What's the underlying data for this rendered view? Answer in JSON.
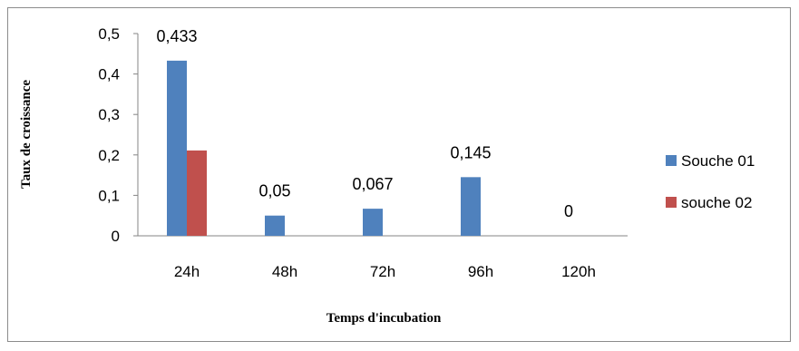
{
  "chart_data": {
    "type": "bar",
    "categories": [
      "24h",
      "48h",
      "72h",
      "96h",
      "120h"
    ],
    "series": [
      {
        "name": "Souche 01",
        "color": "#4f81bd",
        "values": [
          0.433,
          0.05,
          0.067,
          0.145,
          0
        ],
        "labels": [
          "0,433",
          "0,05",
          "0,067",
          "0,145",
          "0"
        ]
      },
      {
        "name": "souche 02",
        "color": "#c0504d",
        "values": [
          0.211,
          null,
          null,
          null,
          null
        ],
        "labels": [
          null,
          null,
          null,
          null,
          null
        ]
      }
    ],
    "xlabel": "Temps d'incubation",
    "ylabel": "Taux de croissance",
    "ylim": [
      0,
      0.5
    ],
    "yticks": [
      0,
      0.1,
      0.2,
      0.3,
      0.4,
      0.5
    ],
    "ytick_labels": [
      "0",
      "0,1",
      "0,2",
      "0,3",
      "0,4",
      "0,5"
    ],
    "grid": false,
    "legend_position": "right"
  }
}
